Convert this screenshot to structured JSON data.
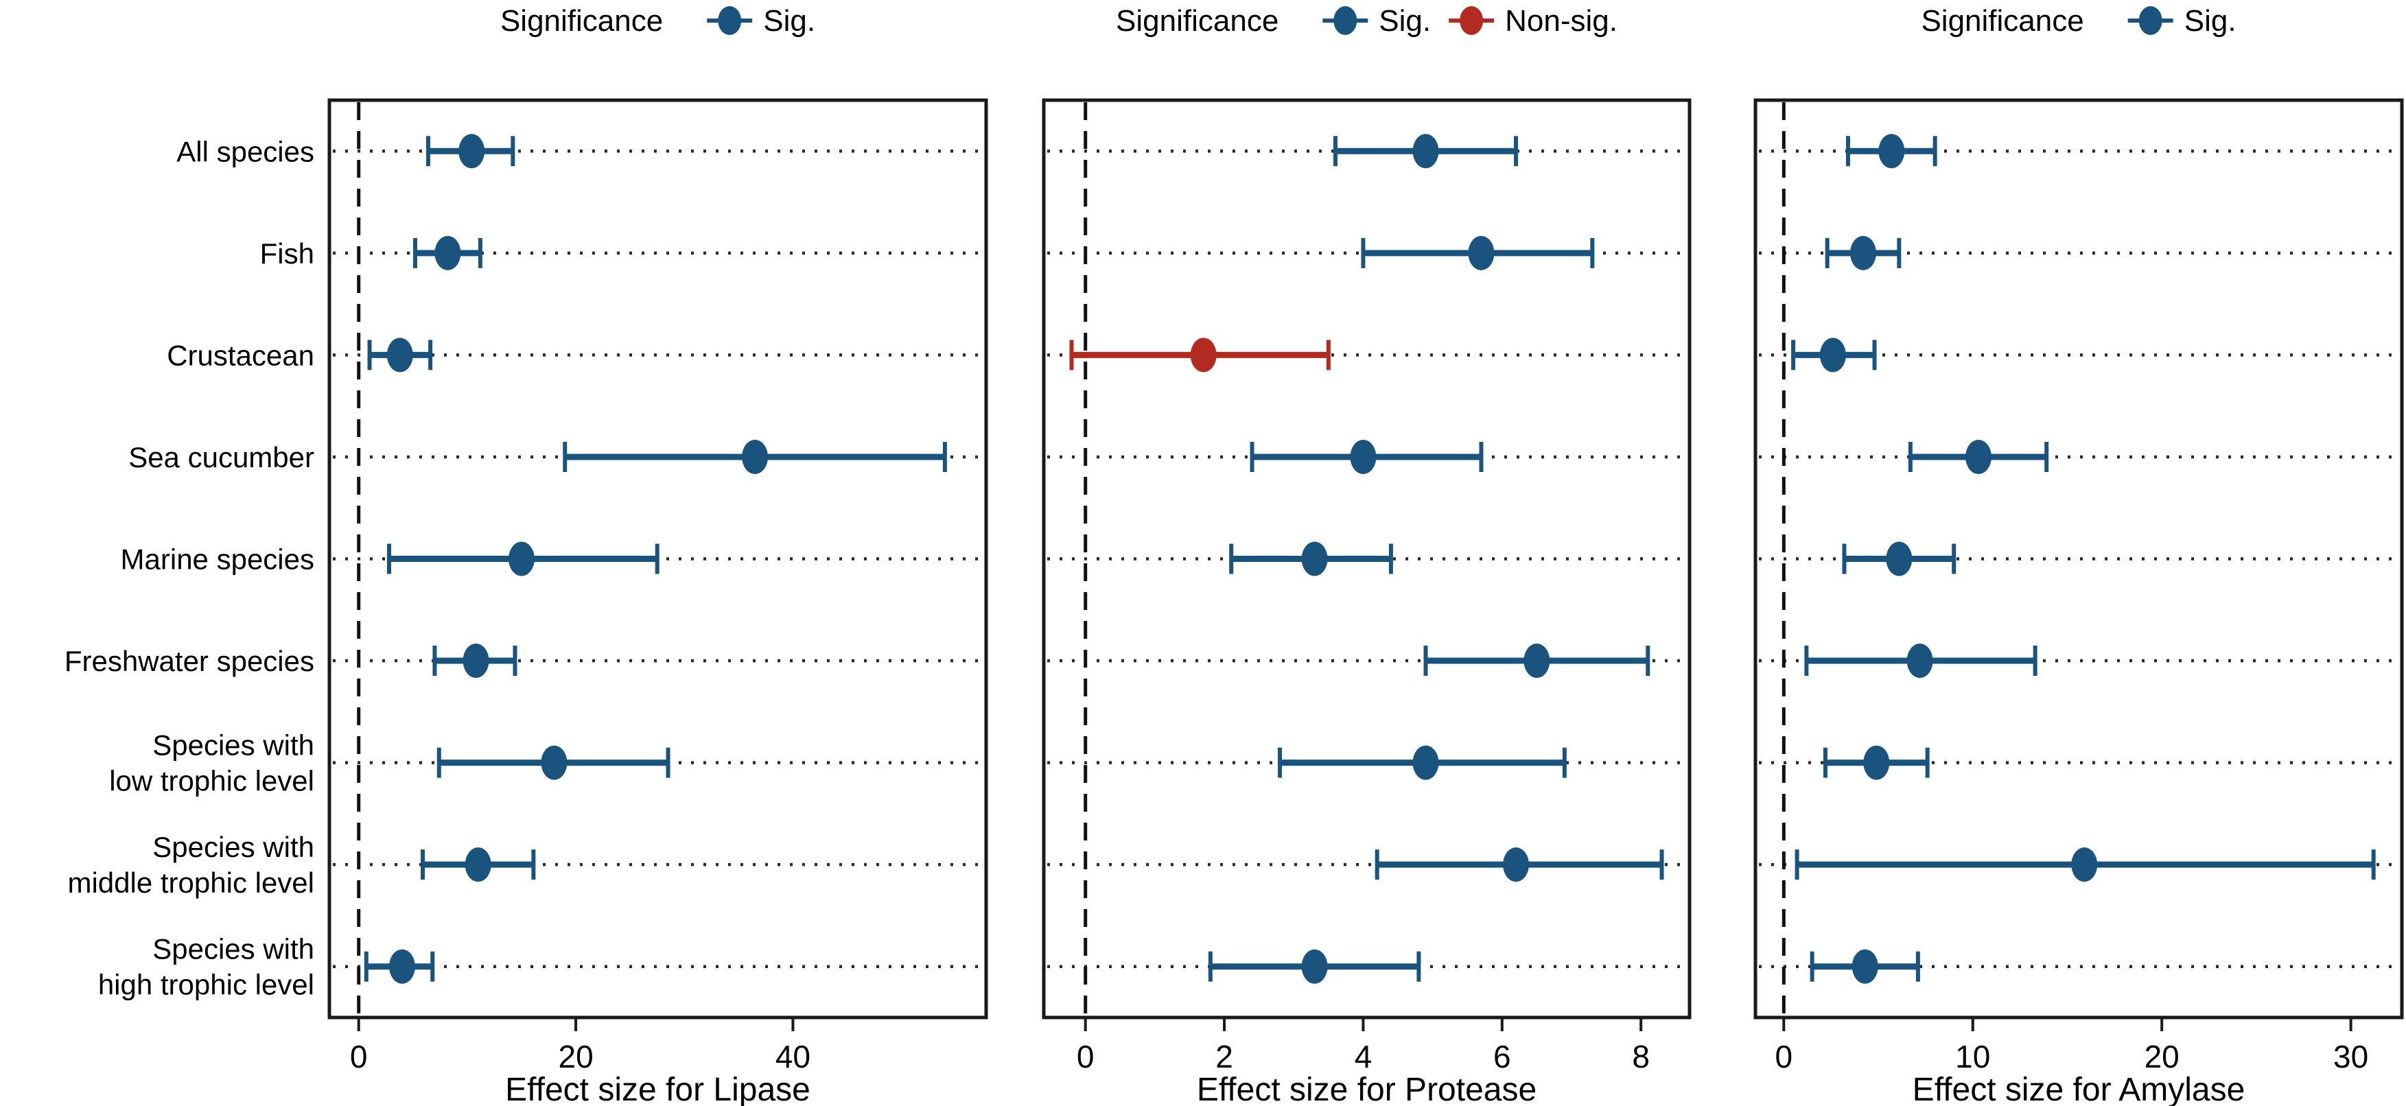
{
  "figure_title": "",
  "colors": {
    "significant": "#1a547e",
    "non_significant": "#b42a21",
    "frame": "#1a1a1a",
    "guide_dots": "#2a2a2a",
    "zero_line": "#111111",
    "text": "#000000",
    "background": "#ffffff"
  },
  "legend": {
    "title": "Significance",
    "sig_label": "Sig.",
    "nonsig_label": "Non-sig."
  },
  "categories_display": [
    [
      "All species"
    ],
    [
      "Fish"
    ],
    [
      "Crustacean"
    ],
    [
      "Sea cucumber"
    ],
    [
      "Marine species"
    ],
    [
      "Freshwater species"
    ],
    [
      "Species with",
      "low trophic level"
    ],
    [
      "Species with",
      "middle trophic level"
    ],
    [
      "Species with",
      "high trophic level"
    ]
  ],
  "chart_data": [
    {
      "type": "scatter",
      "panel": "lipase",
      "xlabel": "Effect size for Lipase",
      "xticks": [
        0,
        20,
        40
      ],
      "xlim": [
        -2.7,
        57.8
      ],
      "grid": "dotted-horizontal",
      "legend_entries": [
        {
          "label": "Sig.",
          "color_key": "significant"
        }
      ],
      "points": [
        {
          "category": "All species",
          "mean": 10.4,
          "lo": 6.4,
          "hi": 14.2,
          "significant": true
        },
        {
          "category": "Fish",
          "mean": 8.2,
          "lo": 5.2,
          "hi": 11.2,
          "significant": true
        },
        {
          "category": "Crustacean",
          "mean": 3.8,
          "lo": 1.0,
          "hi": 6.6,
          "significant": true
        },
        {
          "category": "Sea cucumber",
          "mean": 36.5,
          "lo": 19.0,
          "hi": 54.0,
          "significant": true
        },
        {
          "category": "Marine species",
          "mean": 15.0,
          "lo": 2.8,
          "hi": 27.5,
          "significant": true
        },
        {
          "category": "Freshwater species",
          "mean": 10.8,
          "lo": 7.0,
          "hi": 14.4,
          "significant": true
        },
        {
          "category": "Species with low trophic level",
          "mean": 18.0,
          "lo": 7.4,
          "hi": 28.5,
          "significant": true
        },
        {
          "category": "Species with middle trophic level",
          "mean": 11.0,
          "lo": 5.9,
          "hi": 16.1,
          "significant": true
        },
        {
          "category": "Species with high trophic level",
          "mean": 4.0,
          "lo": 0.7,
          "hi": 6.8,
          "significant": true
        }
      ]
    },
    {
      "type": "scatter",
      "panel": "protease",
      "xlabel": "Effect size for Protease",
      "xticks": [
        0,
        2,
        4,
        6,
        8
      ],
      "xlim": [
        -0.6,
        8.7
      ],
      "grid": "dotted-horizontal",
      "legend_entries": [
        {
          "label": "Sig.",
          "color_key": "significant"
        },
        {
          "label": "Non-sig.",
          "color_key": "non_significant"
        }
      ],
      "points": [
        {
          "category": "All species",
          "mean": 4.9,
          "lo": 3.6,
          "hi": 6.2,
          "significant": true
        },
        {
          "category": "Fish",
          "mean": 5.7,
          "lo": 4.0,
          "hi": 7.3,
          "significant": true
        },
        {
          "category": "Crustacean",
          "mean": 1.7,
          "lo": -0.2,
          "hi": 3.5,
          "significant": false
        },
        {
          "category": "Sea cucumber",
          "mean": 4.0,
          "lo": 2.4,
          "hi": 5.7,
          "significant": true
        },
        {
          "category": "Marine species",
          "mean": 3.3,
          "lo": 2.1,
          "hi": 4.4,
          "significant": true
        },
        {
          "category": "Freshwater species",
          "mean": 6.5,
          "lo": 4.9,
          "hi": 8.1,
          "significant": true
        },
        {
          "category": "Species with low trophic level",
          "mean": 4.9,
          "lo": 2.8,
          "hi": 6.9,
          "significant": true
        },
        {
          "category": "Species with middle trophic level",
          "mean": 6.2,
          "lo": 4.2,
          "hi": 8.3,
          "significant": true
        },
        {
          "category": "Species with high trophic level",
          "mean": 3.3,
          "lo": 1.8,
          "hi": 4.8,
          "significant": true
        }
      ]
    },
    {
      "type": "scatter",
      "panel": "amylase",
      "xlabel": "Effect size for Amylase",
      "xticks": [
        0,
        10,
        20,
        30
      ],
      "xlim": [
        -1.5,
        32.7
      ],
      "grid": "dotted-horizontal",
      "legend_entries": [
        {
          "label": "Sig.",
          "color_key": "significant"
        }
      ],
      "points": [
        {
          "category": "All species",
          "mean": 5.7,
          "lo": 3.4,
          "hi": 8.0,
          "significant": true
        },
        {
          "category": "Fish",
          "mean": 4.2,
          "lo": 2.3,
          "hi": 6.1,
          "significant": true
        },
        {
          "category": "Crustacean",
          "mean": 2.6,
          "lo": 0.5,
          "hi": 4.8,
          "significant": true
        },
        {
          "category": "Sea cucumber",
          "mean": 10.3,
          "lo": 6.7,
          "hi": 13.9,
          "significant": true
        },
        {
          "category": "Marine species",
          "mean": 6.1,
          "lo": 3.2,
          "hi": 9.0,
          "significant": true
        },
        {
          "category": "Freshwater species",
          "mean": 7.2,
          "lo": 1.2,
          "hi": 13.3,
          "significant": true
        },
        {
          "category": "Species with low trophic level",
          "mean": 4.9,
          "lo": 2.2,
          "hi": 7.6,
          "significant": true
        },
        {
          "category": "Species with middle trophic level",
          "mean": 15.9,
          "lo": 0.7,
          "hi": 31.2,
          "significant": true
        },
        {
          "category": "Species with high trophic level",
          "mean": 4.3,
          "lo": 1.5,
          "hi": 7.1,
          "significant": true
        }
      ]
    }
  ]
}
